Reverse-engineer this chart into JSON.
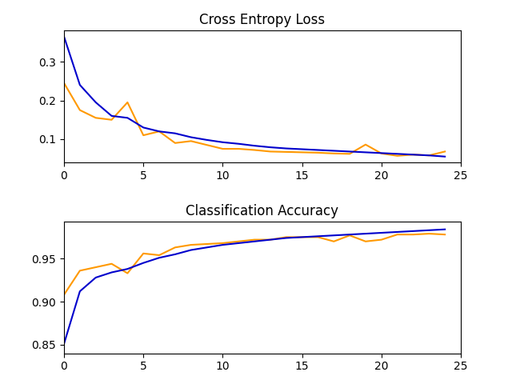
{
  "loss_blue": [
    0.365,
    0.24,
    0.195,
    0.16,
    0.155,
    0.13,
    0.12,
    0.115,
    0.105,
    0.098,
    0.092,
    0.088,
    0.083,
    0.079,
    0.076,
    0.074,
    0.072,
    0.07,
    0.068,
    0.066,
    0.064,
    0.062,
    0.06,
    0.058,
    0.055
  ],
  "loss_orange": [
    0.245,
    0.175,
    0.155,
    0.15,
    0.195,
    0.11,
    0.12,
    0.09,
    0.095,
    0.085,
    0.075,
    0.075,
    0.072,
    0.068,
    0.067,
    0.066,
    0.065,
    0.063,
    0.062,
    0.086,
    0.063,
    0.057,
    0.06,
    0.058,
    0.068
  ],
  "acc_blue": [
    0.851,
    0.912,
    0.928,
    0.934,
    0.938,
    0.945,
    0.951,
    0.955,
    0.96,
    0.963,
    0.966,
    0.968,
    0.97,
    0.972,
    0.974,
    0.975,
    0.976,
    0.977,
    0.978,
    0.979,
    0.98,
    0.981,
    0.982,
    0.983,
    0.984
  ],
  "acc_orange": [
    0.908,
    0.936,
    0.94,
    0.944,
    0.933,
    0.956,
    0.954,
    0.963,
    0.966,
    0.967,
    0.968,
    0.97,
    0.972,
    0.972,
    0.975,
    0.975,
    0.975,
    0.97,
    0.977,
    0.97,
    0.972,
    0.978,
    0.978,
    0.979,
    0.978
  ],
  "x": [
    0,
    1,
    2,
    3,
    4,
    5,
    6,
    7,
    8,
    9,
    10,
    11,
    12,
    13,
    14,
    15,
    16,
    17,
    18,
    19,
    20,
    21,
    22,
    23,
    24
  ],
  "title_loss": "Cross Entropy Loss",
  "title_acc": "Classification Accuracy",
  "blue_color": "#0000cc",
  "orange_color": "#ff9900",
  "figsize": [
    6.4,
    4.8
  ],
  "dpi": 100,
  "loss_ylim": [
    0.04,
    0.38
  ],
  "loss_yticks": [
    0.1,
    0.2,
    0.3
  ],
  "acc_ylim": [
    0.84,
    0.993
  ],
  "acc_yticks": [
    0.85,
    0.9,
    0.95
  ],
  "xlim": [
    0,
    25
  ],
  "xticks": [
    0,
    5,
    10,
    15,
    20,
    25
  ]
}
